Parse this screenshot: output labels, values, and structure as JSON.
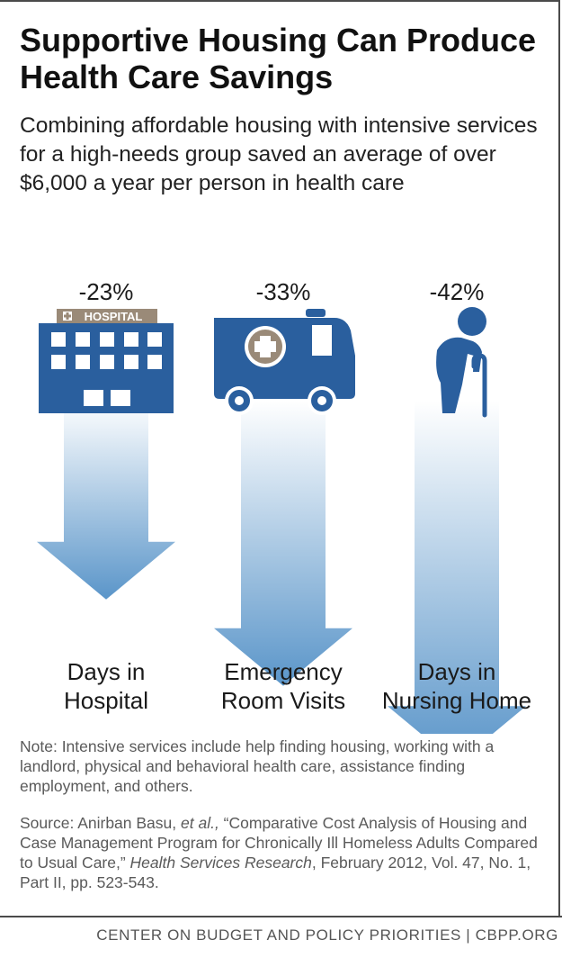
{
  "title": "Supportive Housing Can Produce Health Care Savings",
  "subtitle": "Combining affordable housing with intensive services for a high-needs group saved an average of over $6,000 a year per person in health care",
  "chart_data": {
    "type": "bar",
    "categories": [
      "Days in Hospital",
      "Emergency Room Visits",
      "Days in Nursing Home"
    ],
    "category_lines": [
      [
        "Days in",
        "Hospital"
      ],
      [
        "Emergency",
        "Room Visits"
      ],
      [
        "Days in",
        "Nursing Home"
      ]
    ],
    "values": [
      -23,
      -33,
      -42
    ],
    "value_labels": [
      "-23%",
      "-33%",
      "-42%"
    ],
    "unit": "%",
    "ylim": [
      -45,
      0
    ],
    "grid": false,
    "legend": "none",
    "icons": [
      "hospital-icon",
      "ambulance-icon",
      "elderly-person-icon"
    ],
    "icon_text": {
      "hospital_sign": "HOSPITAL"
    },
    "colors": {
      "icon": "#2a5f9e",
      "arrow_top": "#ffffff",
      "arrow_bottom": "#5a95c9",
      "sign": "#9a8a78"
    }
  },
  "note": "Note: Intensive services include help finding housing, working with a landlord, physical and behavioral health care, assistance finding employment, and others.",
  "source": {
    "prefix": "Source: Anirban Basu, ",
    "etal": "et al.,",
    "middle": " “Comparative Cost Analysis of Housing and Case Management Program for Chronically Ill Homeless Adults Compared to Usual Care,” ",
    "journal": "Health Services Research",
    "suffix": ", February 2012, Vol. 47, No. 1, Part II, pp. 523-543."
  },
  "footer": "CENTER ON BUDGET AND POLICY PRIORITIES | CBPP.ORG"
}
